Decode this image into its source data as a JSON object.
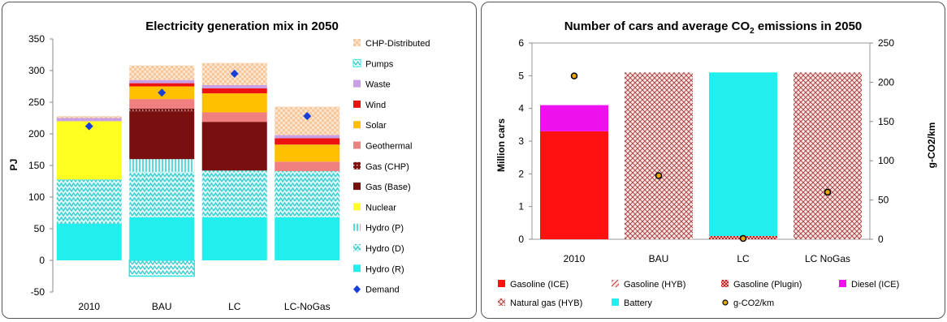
{
  "colors": {
    "chp_distributed": "#f5c79a",
    "pumps": "#33e6e6",
    "waste": "#c9a0e6",
    "wind": "#ee1111",
    "solar": "#ffc000",
    "geothermal": "#f08080",
    "gas_chp": "#6e0000",
    "gas_base": "#7a0f0f",
    "nuclear": "#ffff22",
    "hydro_p": "#9ef0f0",
    "hydro_d": "#55dddd",
    "hydro_r": "#22eeee",
    "demand": "#1a3fd6",
    "gasoline_ice": "#ff1111",
    "gasoline_hyb": "#e07070",
    "gasoline_plugin": "#aa2222",
    "diesel_ice": "#ee11ee",
    "natural_gas_hyb": "#b05050",
    "battery": "#22eeee",
    "gco2": "#e6a800"
  },
  "chart_data": [
    {
      "type": "bar",
      "stacked": true,
      "title": "Electricity generation mix in 2050",
      "xlabel": "",
      "ylabel": "PJ",
      "ylim": [
        -50,
        350
      ],
      "yticks": [
        "350",
        "300",
        "250",
        "200",
        "150",
        "100",
        "50",
        "0",
        "-50"
      ],
      "categories": [
        "2010",
        "BAU",
        "LC",
        "LC-NoGas"
      ],
      "legend_position": "right",
      "series": [
        {
          "name": "Hydro (R)",
          "key": "hydro_r",
          "pattern": "solid",
          "values": [
            58,
            68,
            68,
            68
          ]
        },
        {
          "name": "Hydro (D)",
          "key": "hydro_d",
          "pattern": "zigzag",
          "values": [
            70,
            72,
            74,
            73
          ]
        },
        {
          "name": "Hydro (P)",
          "key": "hydro_p",
          "pattern": "vlines",
          "values": [
            0,
            20,
            0,
            0
          ]
        },
        {
          "name": "Nuclear",
          "key": "nuclear",
          "pattern": "solid",
          "values": [
            92,
            0,
            0,
            0
          ]
        },
        {
          "name": "Gas (Base)",
          "key": "gas_base",
          "pattern": "solid",
          "values": [
            0,
            75,
            77,
            0
          ]
        },
        {
          "name": "Gas (CHP)",
          "key": "gas_chp",
          "pattern": "dots",
          "values": [
            0,
            5,
            0,
            0
          ]
        },
        {
          "name": "Geothermal",
          "key": "geothermal",
          "pattern": "solid",
          "values": [
            0,
            15,
            15,
            15
          ]
        },
        {
          "name": "Solar",
          "key": "solar",
          "pattern": "solid",
          "values": [
            0,
            20,
            30,
            27
          ]
        },
        {
          "name": "Wind",
          "key": "wind",
          "pattern": "solid",
          "values": [
            0,
            5,
            8,
            10
          ]
        },
        {
          "name": "Waste",
          "key": "waste",
          "pattern": "solid",
          "values": [
            5,
            5,
            5,
            5
          ]
        },
        {
          "name": "Pumps",
          "key": "pumps",
          "pattern": "zigzag-outline",
          "values": [
            0,
            -25,
            0,
            0
          ]
        },
        {
          "name": "CHP-Distributed",
          "key": "chp_distributed",
          "pattern": "checker",
          "values": [
            3,
            23,
            35,
            45
          ]
        }
      ],
      "markers": {
        "name": "Demand",
        "key": "demand",
        "shape": "diamond",
        "values": [
          212,
          265,
          295,
          228
        ]
      }
    },
    {
      "type": "bar",
      "stacked": true,
      "title": "Number of cars and average CO",
      "title_sub": "2",
      "title_tail": " emissions in 2050",
      "xlabel": "",
      "ylabel": "Million cars",
      "y2label": "g-CO2/km",
      "ylim": [
        0,
        6
      ],
      "yticks": [
        "6",
        "5",
        "4",
        "3",
        "2",
        "1",
        "0"
      ],
      "y2lim": [
        0,
        250
      ],
      "y2ticks": [
        "250",
        "200",
        "150",
        "100",
        "50",
        "0"
      ],
      "categories": [
        "2010",
        "BAU",
        "LC",
        "LC NoGas"
      ],
      "legend_position": "bottom",
      "series": [
        {
          "name": "Gasoline (ICE)",
          "key": "gasoline_ice",
          "pattern": "solid",
          "values": [
            3.3,
            0,
            0,
            0
          ]
        },
        {
          "name": "Gasoline (HYB)",
          "key": "gasoline_hyb",
          "pattern": "diag",
          "values": [
            0,
            0,
            0,
            0
          ]
        },
        {
          "name": "Gasoline (Plugin)",
          "key": "gasoline_plugin",
          "pattern": "checker",
          "values": [
            0,
            0,
            0.1,
            0
          ]
        },
        {
          "name": "Diesel (ICE)",
          "key": "diesel_ice",
          "pattern": "solid",
          "values": [
            0.8,
            0,
            0,
            0
          ]
        },
        {
          "name": "Natural gas (HYB)",
          "key": "natural_gas_hyb",
          "pattern": "diag",
          "values": [
            0,
            5.1,
            0,
            5.1
          ]
        },
        {
          "name": "Battery",
          "key": "battery",
          "pattern": "solid",
          "values": [
            0,
            0,
            5.0,
            0
          ]
        }
      ],
      "markers": {
        "name": "g-CO2/km",
        "key": "gco2",
        "shape": "dot",
        "axis": "y2",
        "values": [
          208,
          81,
          1,
          60
        ]
      }
    }
  ]
}
